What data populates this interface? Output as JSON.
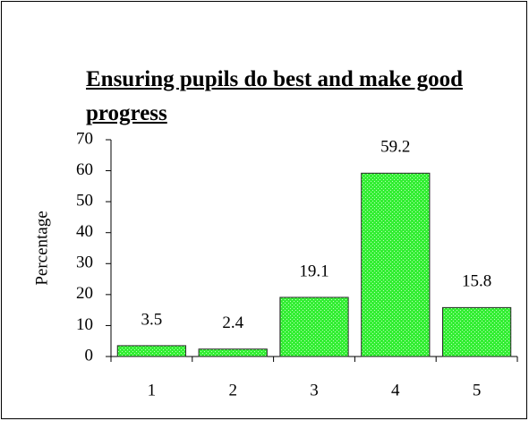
{
  "chart_data": {
    "type": "bar",
    "title": "Ensuring pupils do best and make good progress",
    "y_label": "Percentage",
    "categories": [
      "1",
      "2",
      "3",
      "4",
      "5"
    ],
    "values": [
      3.5,
      2.4,
      19.1,
      59.2,
      15.8
    ],
    "color": "#33ee33",
    "ylim": [
      0,
      70
    ],
    "yticks": [
      0,
      10,
      20,
      30,
      40,
      50,
      60,
      70
    ],
    "grid": false
  }
}
